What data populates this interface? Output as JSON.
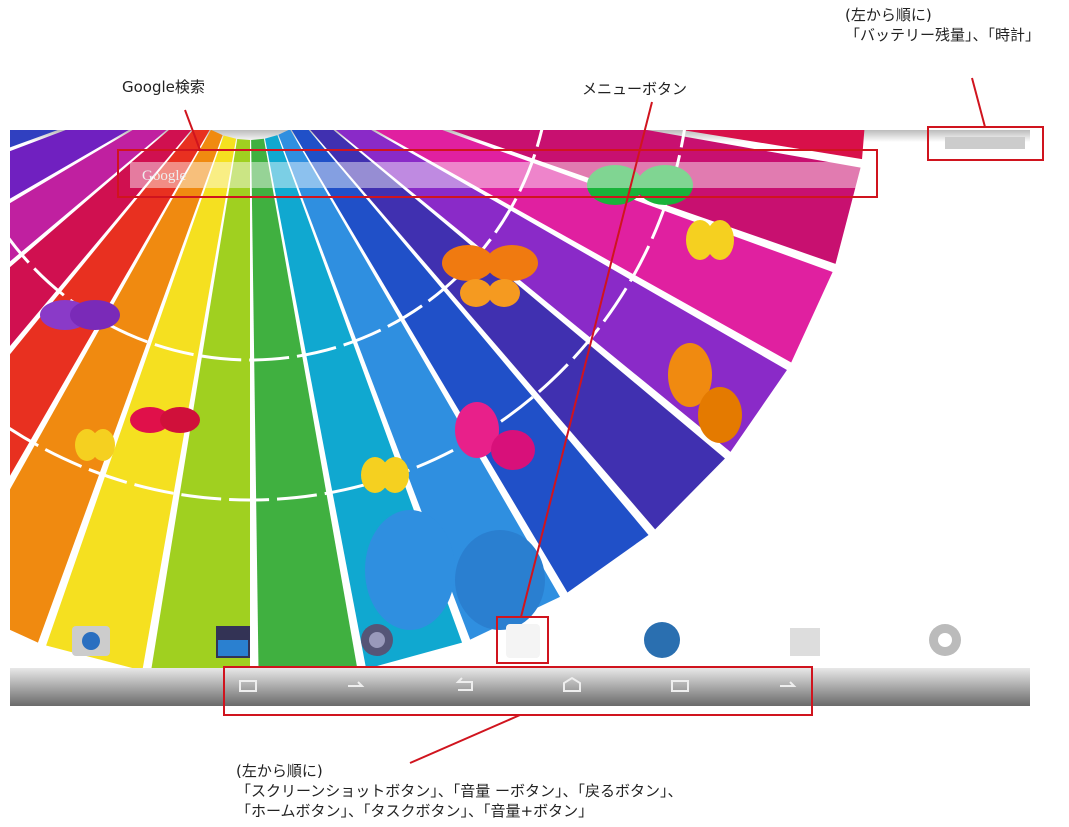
{
  "annotations": {
    "google_search": "Google検索",
    "menu_button": "メニューボタン",
    "status_order": "(左から順に)",
    "status_items": "「バッテリー残量」、「時計」",
    "nav_order": "(左から順に)",
    "nav_items_1": "「スクリーンショットボタン」、「音量 ーボタン」、「戻るボタン」、",
    "nav_items_2": "「ホームボタン」、「タスクボタン」、「音量+ボタン」"
  },
  "screen": {
    "search_bar": "Google"
  }
}
